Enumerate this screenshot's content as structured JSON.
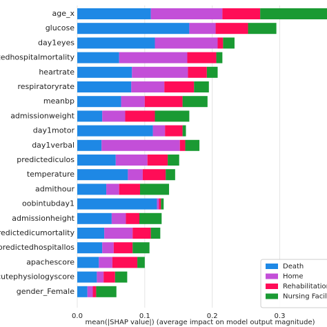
{
  "chart_data": {
    "type": "bar",
    "orientation": "horizontal",
    "stacked": true,
    "xlabel": "mean(|SHAP value|) (average impact on model output magnitude)",
    "categories": [
      "age_x",
      "glucose",
      "day1eyes",
      "predictedhospitalmortality",
      "heartrate",
      "respiratoryrate",
      "meanbp",
      "admissionweight",
      "day1motor",
      "day1verbal",
      "predictediculos",
      "temperature",
      "admithour",
      "oobintubday1",
      "admissionheight",
      "predictedicumortality",
      "predictedhospitallos",
      "apachescore",
      "acutephysiologyscore",
      "gender_Female"
    ],
    "series": [
      {
        "name": "Death",
        "color": "#1e88e5",
        "values": [
          0.109,
          0.166,
          0.115,
          0.062,
          0.081,
          0.08,
          0.065,
          0.037,
          0.112,
          0.036,
          0.057,
          0.075,
          0.043,
          0.118,
          0.051,
          0.04,
          0.037,
          0.032,
          0.029,
          0.015
        ]
      },
      {
        "name": "Home",
        "color": "#c34fd8",
        "values": [
          0.106,
          0.039,
          0.093,
          0.101,
          0.083,
          0.049,
          0.035,
          0.034,
          0.018,
          0.116,
          0.047,
          0.022,
          0.019,
          0.003,
          0.021,
          0.042,
          0.017,
          0.02,
          0.01,
          0.008
        ]
      },
      {
        "name": "Rehabilitation",
        "color": "#ff0d57",
        "values": [
          0.056,
          0.048,
          0.008,
          0.043,
          0.028,
          0.044,
          0.056,
          0.044,
          0.026,
          0.008,
          0.03,
          0.034,
          0.031,
          0.003,
          0.02,
          0.027,
          0.028,
          0.037,
          0.017,
          0.005
        ]
      },
      {
        "name": "Nursing Facility",
        "color": "#1a9a33",
        "values": [
          0.1,
          0.042,
          0.017,
          0.009,
          0.016,
          0.022,
          0.037,
          0.051,
          0.005,
          0.021,
          0.017,
          0.014,
          0.043,
          0.004,
          0.033,
          0.014,
          0.025,
          0.011,
          0.018,
          0.03
        ]
      }
    ],
    "xlim": [
      0,
      0.37
    ],
    "xticks": [
      {
        "value": 0,
        "label": "0.0"
      },
      0.1,
      0.2,
      0.3
    ],
    "grid": true,
    "legend": "lower right"
  }
}
